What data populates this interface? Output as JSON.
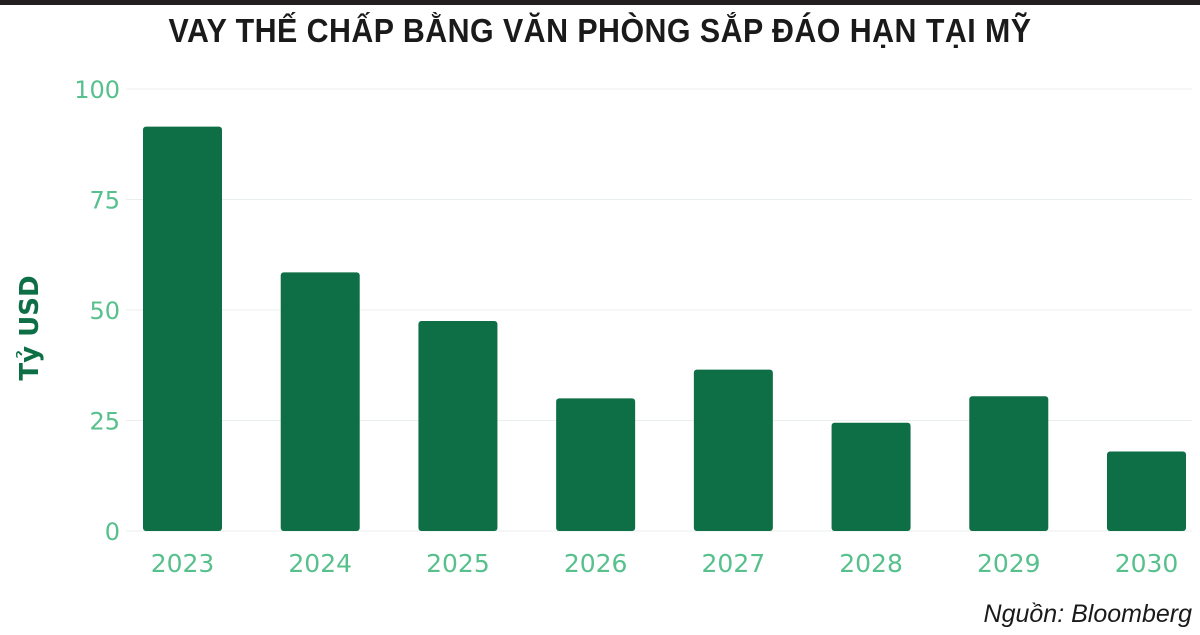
{
  "title": "VAY THẾ CHẤP BẰNG VĂN PHÒNG SẮP ĐÁO HẠN TẠI MỸ",
  "source": "Nguồn: Bloomberg",
  "colors": {
    "bar": "#0e6e45",
    "tick": "#57c08c",
    "grid": "#e8efec",
    "title": "#1a1a1a"
  },
  "chart_data": {
    "type": "bar",
    "title": "VAY THẾ CHẤP BẰNG VĂN PHÒNG SẮP ĐÁO HẠN TẠI MỸ",
    "xlabel": "",
    "ylabel": "Tỷ USD",
    "categories": [
      "2023",
      "2024",
      "2025",
      "2026",
      "2027",
      "2028",
      "2029",
      "2030"
    ],
    "values": [
      91.5,
      58.5,
      47.5,
      30,
      36.5,
      24.5,
      30.5,
      18
    ],
    "ylim": [
      0,
      100
    ],
    "yticks": [
      0,
      25,
      50,
      75,
      100
    ],
    "grid": true
  }
}
